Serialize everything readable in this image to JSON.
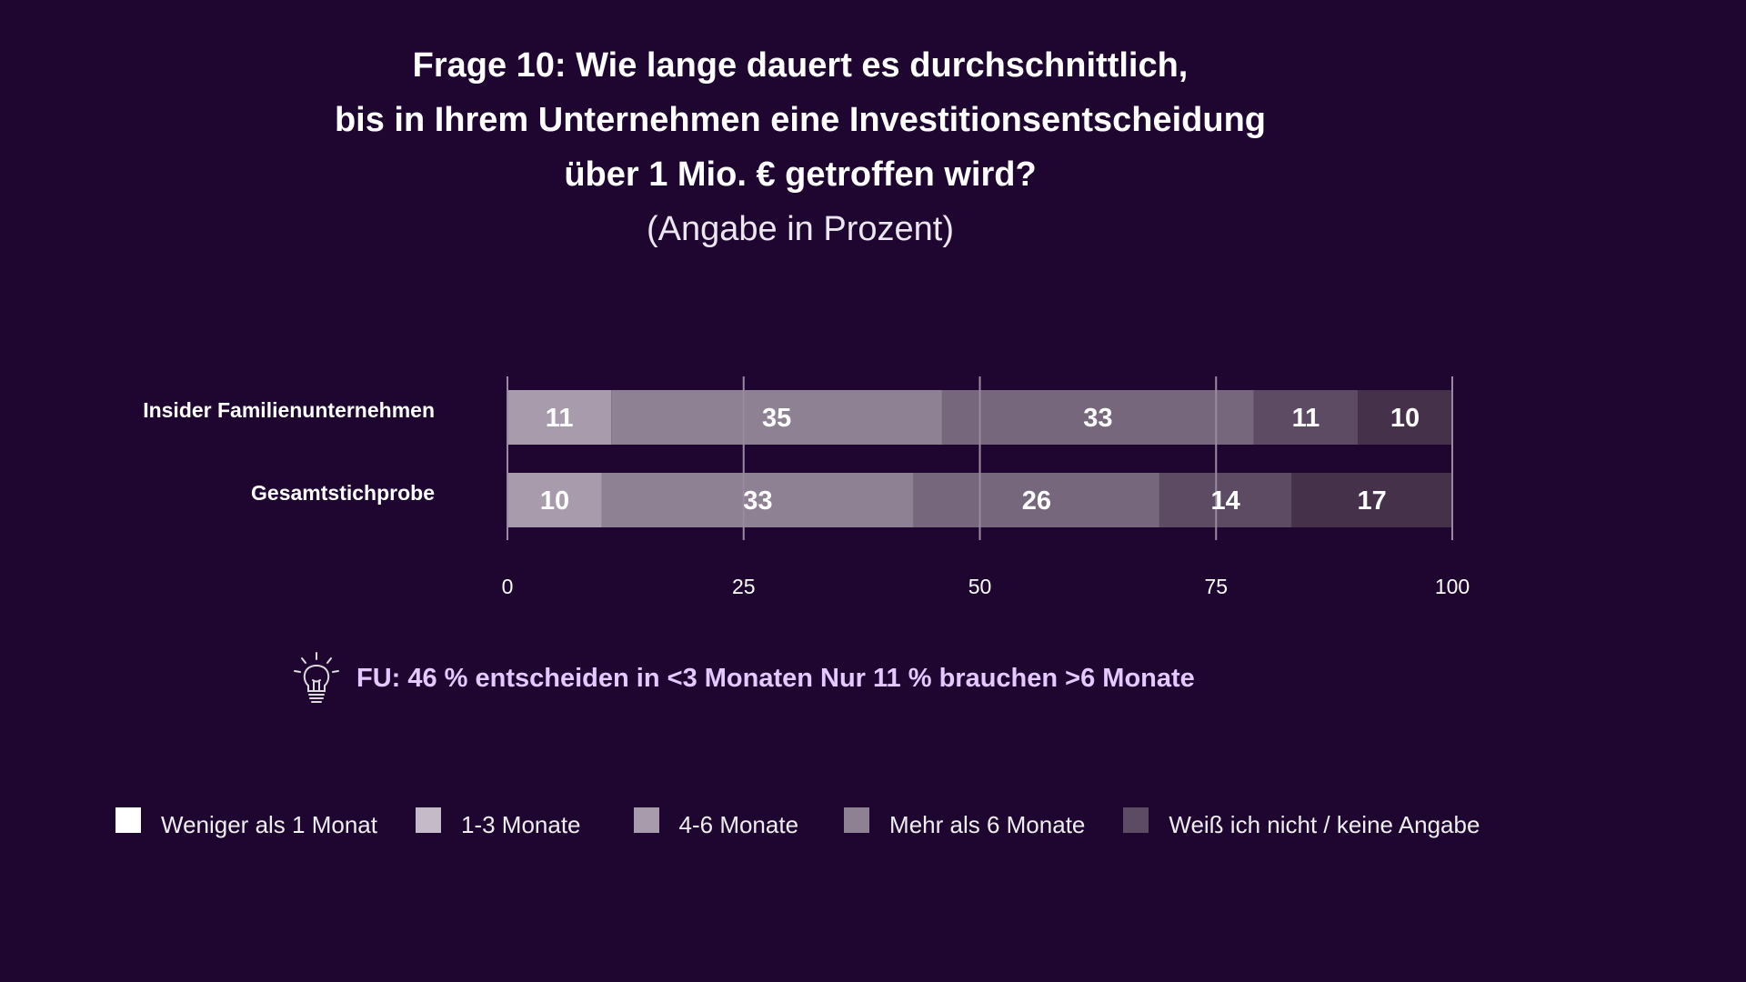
{
  "title": {
    "line1": "Frage 10: Wie lange dauert es durchschnittlich,",
    "line2": "bis in Ihrem Unternehmen eine Investitionsentscheidung",
    "line3": "über 1 Mio. € getroffen wird?",
    "subtitle": "(Angabe in Prozent)"
  },
  "callout": {
    "icon": "lightbulb-icon",
    "text": "FU: 46 % entscheiden in <3 Monaten Nur 11 % brauchen >6 Monate"
  },
  "colors": {
    "background": "#1f0630",
    "segments": [
      "#a89bac",
      "#8f8194",
      "#76677c",
      "#5d4b63",
      "#453149"
    ],
    "legend_swatches": [
      "#ffffff",
      "#c4bac8",
      "#a89bac",
      "#8f8194",
      "#5d4b63"
    ],
    "callout_text": "#e4c8ff"
  },
  "chart_data": {
    "type": "bar",
    "orientation": "horizontal",
    "stacked": true,
    "categories": [
      "Insider Familienunternehmen",
      "Gesamtstichprobe"
    ],
    "series": [
      {
        "name": "Weniger als 1 Monat",
        "values": [
          11,
          10
        ]
      },
      {
        "name": "1-3 Monate",
        "values": [
          35,
          33
        ]
      },
      {
        "name": "4-6 Monate",
        "values": [
          33,
          26
        ]
      },
      {
        "name": "Mehr als 6 Monate",
        "values": [
          11,
          14
        ]
      },
      {
        "name": "Weiß ich nicht / keine Angabe",
        "values": [
          10,
          17
        ]
      }
    ],
    "xlim": [
      0,
      100
    ],
    "xticks": [
      0,
      25,
      50,
      75,
      100
    ],
    "grid": true,
    "legend_position": "bottom"
  }
}
